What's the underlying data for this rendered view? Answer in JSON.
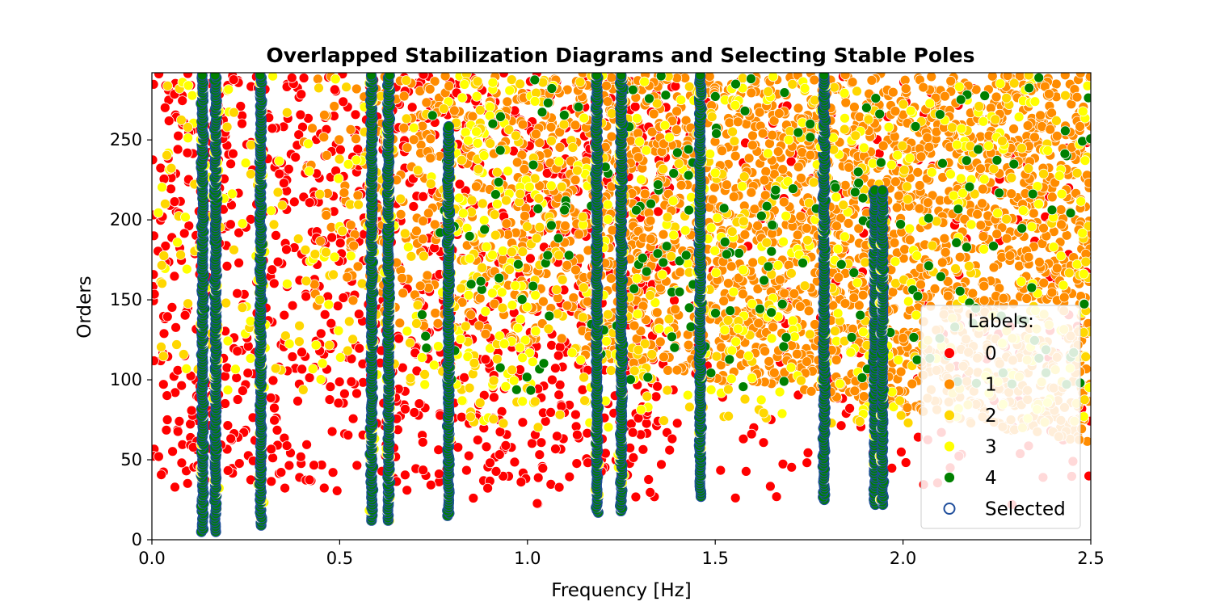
{
  "chart_data": {
    "type": "scatter",
    "title": "Overlapped Stabilization Diagrams and Selecting Stable Poles",
    "xlabel": "Frequency [Hz]",
    "ylabel": "Orders",
    "xlim": [
      0.0,
      2.5
    ],
    "ylim": [
      0,
      292
    ],
    "x_ticks": [
      "0.0",
      "0.5",
      "1.0",
      "1.5",
      "2.0",
      "2.5"
    ],
    "y_ticks": [
      "0",
      "50",
      "100",
      "150",
      "200",
      "250"
    ],
    "x_tick_values": [
      0.0,
      0.5,
      1.0,
      1.5,
      2.0,
      2.5
    ],
    "y_tick_values": [
      0,
      50,
      100,
      150,
      200,
      250
    ],
    "legend": {
      "title": "Labels:",
      "placement": "lower right",
      "entries": [
        {
          "label": "0",
          "color": "#ff0000",
          "marker": "filled"
        },
        {
          "label": "1",
          "color": "#ff8c00",
          "marker": "filled"
        },
        {
          "label": "2",
          "color": "#ffd700",
          "marker": "filled"
        },
        {
          "label": "3",
          "color": "#ffff00",
          "marker": "filled"
        },
        {
          "label": "4",
          "color": "#008000",
          "marker": "filled"
        },
        {
          "label": "Selected",
          "color": "#1f4e9c",
          "marker": "open"
        }
      ]
    },
    "stable_columns": [
      {
        "x": 0.135,
        "y_min": 5,
        "y_max": 292
      },
      {
        "x": 0.17,
        "y_min": 5,
        "y_max": 292
      },
      {
        "x": 0.29,
        "y_min": 9,
        "y_max": 292
      },
      {
        "x": 0.585,
        "y_min": 12,
        "y_max": 292
      },
      {
        "x": 0.63,
        "y_min": 12,
        "y_max": 292
      },
      {
        "x": 0.79,
        "y_min": 15,
        "y_max": 260
      },
      {
        "x": 1.185,
        "y_min": 17,
        "y_max": 292
      },
      {
        "x": 1.25,
        "y_min": 18,
        "y_max": 292
      },
      {
        "x": 1.46,
        "y_min": 27,
        "y_max": 292
      },
      {
        "x": 1.79,
        "y_min": 25,
        "y_max": 292
      },
      {
        "x": 1.925,
        "y_min": 22,
        "y_max": 220
      },
      {
        "x": 1.945,
        "y_min": 22,
        "y_max": 220
      }
    ],
    "scatter_density": [
      {
        "label": "0",
        "description": "unstable poles spread across all frequencies, denser at 0.0–1.3 Hz above order ~30"
      },
      {
        "label": "1",
        "description": "dense at 0.7–2.5 Hz, orders ~60–292"
      },
      {
        "label": "2",
        "description": "scattered among label 1, 1.0–2.5 Hz"
      },
      {
        "label": "3",
        "description": "scattered among label 1, 1.0–2.5 Hz"
      },
      {
        "label": "4",
        "description": "concentrated along stable columns"
      }
    ],
    "grid": false
  }
}
